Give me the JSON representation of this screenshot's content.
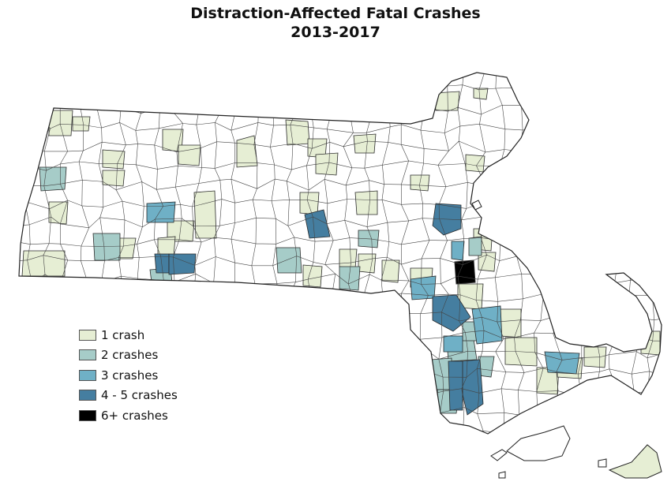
{
  "map": {
    "title_line1": "Distraction-Affected Fatal Crashes",
    "title_line2": "2013-2017"
  },
  "colors": {
    "none": "#ffffff",
    "c1": "#e6eed4",
    "c2": "#a6ccc8",
    "c3": "#6fb0c6",
    "c45": "#457ea0",
    "c6": "#000000",
    "border": "#2a2a2a"
  },
  "legend": [
    {
      "label": "1 crash",
      "color": "#e6eed4"
    },
    {
      "label": "2 crashes",
      "color": "#a6ccc8"
    },
    {
      "label": "3 crashes",
      "color": "#6fb0c6"
    },
    {
      "label": "4 - 5 crashes",
      "color": "#457ea0"
    },
    {
      "label": "6+ crashes",
      "color": "#000000"
    }
  ]
}
